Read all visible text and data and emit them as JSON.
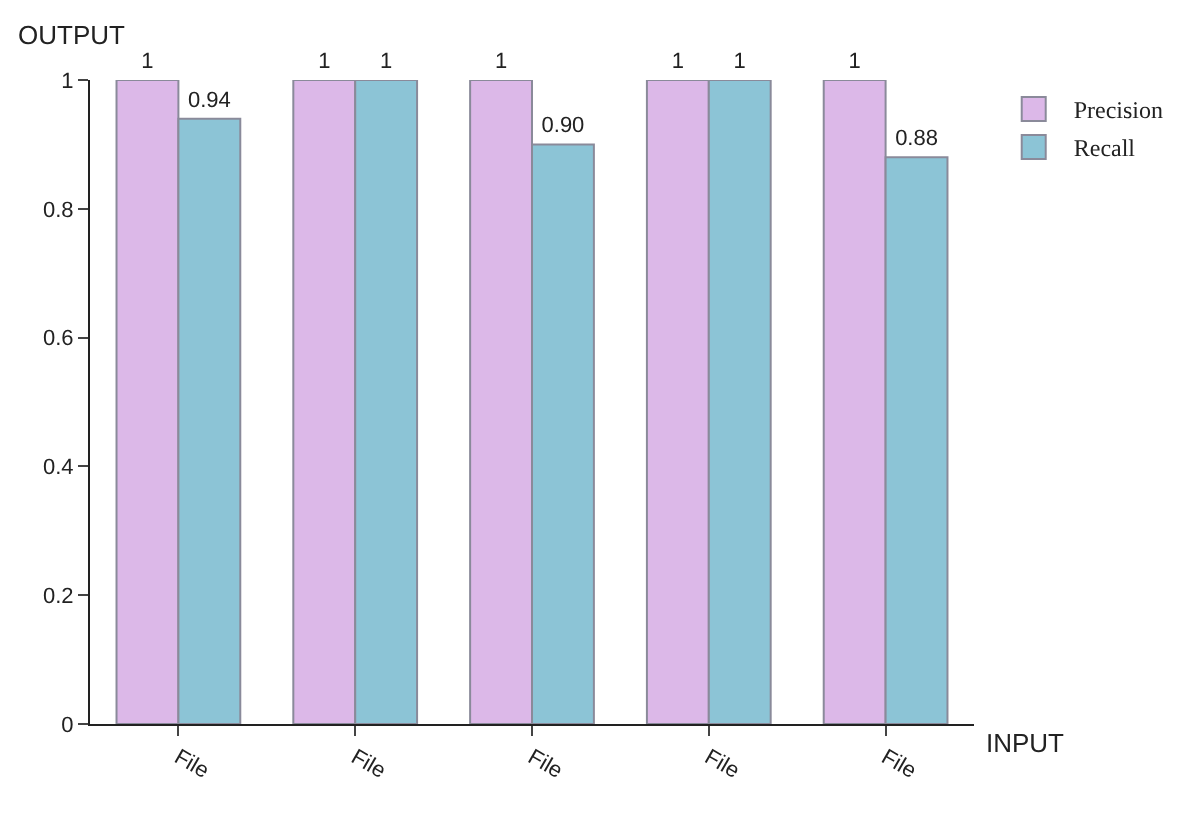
{
  "chart_data": {
    "type": "bar",
    "xlabel": "INPUT",
    "ylabel": "OUTPUT",
    "categories": [
      "File",
      "File",
      "File",
      "File",
      "File"
    ],
    "series": [
      {
        "name": "Precision",
        "color": "#dcb8e8",
        "values": [
          1,
          1,
          1,
          1,
          1
        ],
        "value_labels": [
          "1",
          "1",
          "1",
          "1",
          "1"
        ]
      },
      {
        "name": "Recall",
        "color": "#8cc4d6",
        "values": [
          0.94,
          1,
          0.9,
          1,
          0.88
        ],
        "value_labels": [
          "0.94",
          "1",
          "0.90",
          "1",
          "0.88"
        ]
      }
    ],
    "ylim": [
      0,
      1
    ],
    "yticks": [
      0,
      0.2,
      0.4,
      0.6,
      0.8,
      1
    ],
    "legend": "top right",
    "grid": false
  }
}
